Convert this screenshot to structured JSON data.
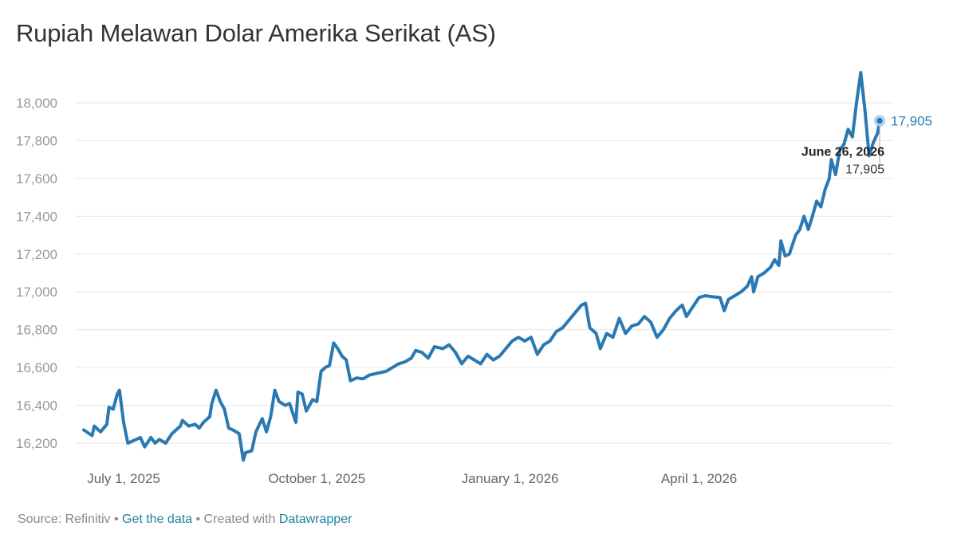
{
  "title": "Rupiah Melawan Dolar Amerika Serikat (AS)",
  "footer": {
    "source": "Source: Refinitiv",
    "sep1": " • ",
    "get_data": "Get the data",
    "sep2": " • Created with ",
    "datawrapper": "Datawrapper"
  },
  "tooltip": {
    "date": "June 26, 2026",
    "value": "17,905"
  },
  "colors": {
    "line": "#2a79b3",
    "grid": "#e6e6e6",
    "end_label": "#2e7fb8"
  },
  "chart_data": {
    "type": "line",
    "title": "Rupiah Melawan Dolar Amerika Serikat (AS)",
    "xlabel": "",
    "ylabel": "",
    "grid": true,
    "ylim": [
      16100,
      18200
    ],
    "xlim": [
      "2025-06-12",
      "2026-06-26"
    ],
    "y_ticks": [
      {
        "value": 16200,
        "label": "16,200"
      },
      {
        "value": 16400,
        "label": "16,400"
      },
      {
        "value": 16600,
        "label": "16,600"
      },
      {
        "value": 16800,
        "label": "16,800"
      },
      {
        "value": 17000,
        "label": "17,000"
      },
      {
        "value": 17200,
        "label": "17,200"
      },
      {
        "value": 17400,
        "label": "17,400"
      },
      {
        "value": 17600,
        "label": "17,600"
      },
      {
        "value": 17800,
        "label": "17,800"
      },
      {
        "value": 18000,
        "label": "18,000"
      }
    ],
    "x_ticks": [
      {
        "date": "2025-07-01",
        "label": "July 1, 2025"
      },
      {
        "date": "2025-10-01",
        "label": "October 1, 2025"
      },
      {
        "date": "2026-01-01",
        "label": "January 1, 2026"
      },
      {
        "date": "2026-04-01",
        "label": "April 1, 2026"
      }
    ],
    "end_label": "17,905",
    "series": [
      {
        "points": [
          [
            "2025-06-12",
            16270
          ],
          [
            "2025-06-16",
            16240
          ],
          [
            "2025-06-17",
            16290
          ],
          [
            "2025-06-20",
            16260
          ],
          [
            "2025-06-23",
            16300
          ],
          [
            "2025-06-24",
            16390
          ],
          [
            "2025-06-26",
            16380
          ],
          [
            "2025-06-28",
            16460
          ],
          [
            "2025-06-29",
            16480
          ],
          [
            "2025-07-01",
            16310
          ],
          [
            "2025-07-03",
            16200
          ],
          [
            "2025-07-07",
            16220
          ],
          [
            "2025-07-09",
            16230
          ],
          [
            "2025-07-11",
            16180
          ],
          [
            "2025-07-14",
            16230
          ],
          [
            "2025-07-16",
            16200
          ],
          [
            "2025-07-18",
            16220
          ],
          [
            "2025-07-21",
            16200
          ],
          [
            "2025-07-24",
            16250
          ],
          [
            "2025-07-28",
            16290
          ],
          [
            "2025-07-29",
            16320
          ],
          [
            "2025-08-01",
            16290
          ],
          [
            "2025-08-04",
            16300
          ],
          [
            "2025-08-06",
            16280
          ],
          [
            "2025-08-08",
            16310
          ],
          [
            "2025-08-11",
            16340
          ],
          [
            "2025-08-12",
            16410
          ],
          [
            "2025-08-14",
            16480
          ],
          [
            "2025-08-16",
            16420
          ],
          [
            "2025-08-18",
            16380
          ],
          [
            "2025-08-20",
            16280
          ],
          [
            "2025-08-22",
            16270
          ],
          [
            "2025-08-25",
            16250
          ],
          [
            "2025-08-27",
            16110
          ],
          [
            "2025-08-28",
            16150
          ],
          [
            "2025-08-31",
            16160
          ],
          [
            "2025-09-02",
            16260
          ],
          [
            "2025-09-05",
            16330
          ],
          [
            "2025-09-07",
            16260
          ],
          [
            "2025-09-09",
            16340
          ],
          [
            "2025-09-11",
            16480
          ],
          [
            "2025-09-13",
            16420
          ],
          [
            "2025-09-16",
            16400
          ],
          [
            "2025-09-18",
            16410
          ],
          [
            "2025-09-21",
            16310
          ],
          [
            "2025-09-22",
            16470
          ],
          [
            "2025-09-24",
            16460
          ],
          [
            "2025-09-26",
            16370
          ],
          [
            "2025-09-29",
            16430
          ],
          [
            "2025-10-01",
            16420
          ],
          [
            "2025-10-03",
            16580
          ],
          [
            "2025-10-05",
            16600
          ],
          [
            "2025-10-07",
            16610
          ],
          [
            "2025-10-09",
            16730
          ],
          [
            "2025-10-11",
            16700
          ],
          [
            "2025-10-13",
            16660
          ],
          [
            "2025-10-15",
            16640
          ],
          [
            "2025-10-17",
            16530
          ],
          [
            "2025-10-20",
            16545
          ],
          [
            "2025-10-23",
            16540
          ],
          [
            "2025-10-26",
            16560
          ],
          [
            "2025-10-30",
            16570
          ],
          [
            "2025-11-03",
            16580
          ],
          [
            "2025-11-06",
            16600
          ],
          [
            "2025-11-09",
            16620
          ],
          [
            "2025-11-12",
            16630
          ],
          [
            "2025-11-15",
            16650
          ],
          [
            "2025-11-17",
            16690
          ],
          [
            "2025-11-20",
            16680
          ],
          [
            "2025-11-23",
            16650
          ],
          [
            "2025-11-26",
            16710
          ],
          [
            "2025-11-30",
            16700
          ],
          [
            "2025-12-03",
            16720
          ],
          [
            "2025-12-06",
            16680
          ],
          [
            "2025-12-09",
            16620
          ],
          [
            "2025-12-12",
            16660
          ],
          [
            "2025-12-15",
            16640
          ],
          [
            "2025-12-18",
            16620
          ],
          [
            "2025-12-21",
            16670
          ],
          [
            "2025-12-24",
            16640
          ],
          [
            "2025-12-27",
            16660
          ],
          [
            "2025-12-30",
            16700
          ],
          [
            "2026-01-02",
            16740
          ],
          [
            "2026-01-05",
            16760
          ],
          [
            "2026-01-08",
            16740
          ],
          [
            "2026-01-11",
            16760
          ],
          [
            "2026-01-14",
            16670
          ],
          [
            "2026-01-17",
            16720
          ],
          [
            "2026-01-20",
            16740
          ],
          [
            "2026-01-23",
            16790
          ],
          [
            "2026-01-26",
            16810
          ],
          [
            "2026-01-29",
            16850
          ],
          [
            "2026-02-01",
            16890
          ],
          [
            "2026-02-04",
            16930
          ],
          [
            "2026-02-06",
            16940
          ],
          [
            "2026-02-08",
            16810
          ],
          [
            "2026-02-11",
            16780
          ],
          [
            "2026-02-13",
            16700
          ],
          [
            "2026-02-16",
            16780
          ],
          [
            "2026-02-19",
            16760
          ],
          [
            "2026-02-22",
            16860
          ],
          [
            "2026-02-25",
            16780
          ],
          [
            "2026-02-28",
            16820
          ],
          [
            "2026-03-03",
            16830
          ],
          [
            "2026-03-06",
            16870
          ],
          [
            "2026-03-09",
            16840
          ],
          [
            "2026-03-12",
            16760
          ],
          [
            "2026-03-15",
            16800
          ],
          [
            "2026-03-18",
            16860
          ],
          [
            "2026-03-21",
            16900
          ],
          [
            "2026-03-24",
            16930
          ],
          [
            "2026-03-26",
            16870
          ],
          [
            "2026-03-29",
            16920
          ],
          [
            "2026-04-01",
            16970
          ],
          [
            "2026-04-04",
            16980
          ],
          [
            "2026-04-07",
            16975
          ],
          [
            "2026-04-11",
            16970
          ],
          [
            "2026-04-13",
            16900
          ],
          [
            "2026-04-15",
            16960
          ],
          [
            "2026-04-18",
            16980
          ],
          [
            "2026-04-21",
            17000
          ],
          [
            "2026-04-24",
            17030
          ],
          [
            "2026-04-26",
            17080
          ],
          [
            "2026-04-27",
            17000
          ],
          [
            "2026-04-29",
            17080
          ],
          [
            "2026-05-02",
            17100
          ],
          [
            "2026-05-05",
            17130
          ],
          [
            "2026-05-07",
            17170
          ],
          [
            "2026-05-09",
            17140
          ],
          [
            "2026-05-10",
            17270
          ],
          [
            "2026-05-12",
            17190
          ],
          [
            "2026-05-14",
            17200
          ],
          [
            "2026-05-17",
            17300
          ],
          [
            "2026-05-19",
            17330
          ],
          [
            "2026-05-21",
            17400
          ],
          [
            "2026-05-23",
            17330
          ],
          [
            "2026-05-25",
            17400
          ],
          [
            "2026-05-27",
            17480
          ],
          [
            "2026-05-29",
            17450
          ],
          [
            "2026-05-31",
            17540
          ],
          [
            "2026-06-02",
            17600
          ],
          [
            "2026-06-03",
            17700
          ],
          [
            "2026-06-05",
            17620
          ],
          [
            "2026-06-07",
            17750
          ],
          [
            "2026-06-09",
            17780
          ],
          [
            "2026-06-11",
            17860
          ],
          [
            "2026-06-13",
            17820
          ],
          [
            "2026-06-15",
            18000
          ],
          [
            "2026-06-17",
            18160
          ],
          [
            "2026-06-19",
            17960
          ],
          [
            "2026-06-21",
            17720
          ],
          [
            "2026-06-23",
            17790
          ],
          [
            "2026-06-25",
            17840
          ],
          [
            "2026-06-26",
            17905
          ]
        ]
      }
    ]
  }
}
